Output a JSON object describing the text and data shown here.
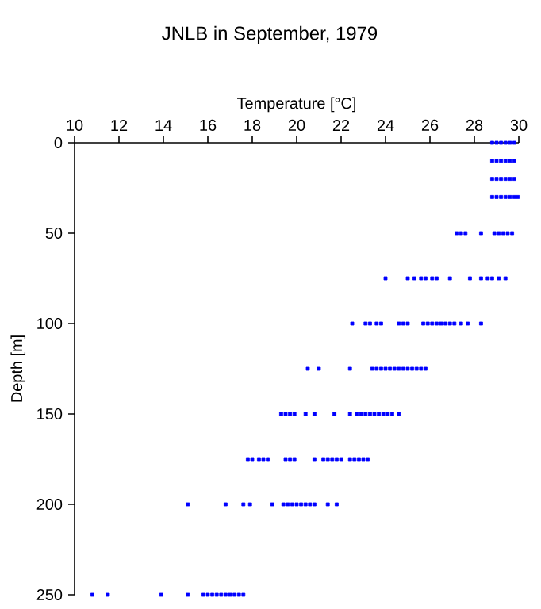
{
  "chart_data": {
    "type": "scatter",
    "title": "JNLB in September, 1979",
    "xlabel": "Temperature [°C]",
    "ylabel": "Depth [m]",
    "xlim": [
      10,
      30
    ],
    "xticks": [
      10,
      12,
      14,
      16,
      18,
      20,
      22,
      24,
      26,
      28,
      30
    ],
    "ylim": [
      250,
      0
    ],
    "yticks": [
      0,
      50,
      100,
      150,
      200,
      250
    ],
    "marker": "square",
    "series": [
      {
        "color": "#0000ff",
        "x": [
          28.8,
          29.0,
          29.2,
          29.4,
          29.6,
          29.8
        ],
        "values": [
          0,
          0,
          0,
          0,
          0,
          0
        ]
      },
      {
        "color": "#0000ff",
        "x": [
          28.8,
          29.0,
          29.2,
          29.4,
          29.6,
          29.8
        ],
        "values": [
          10,
          10,
          10,
          10,
          10,
          10
        ]
      },
      {
        "color": "#0000ff",
        "x": [
          28.8,
          29.0,
          29.2,
          29.4,
          29.6,
          29.8
        ],
        "values": [
          20,
          20,
          20,
          20,
          20,
          20
        ]
      },
      {
        "color": "#0000ff",
        "x": [
          28.8,
          29.0,
          29.2,
          29.4,
          29.6,
          29.8,
          29.95
        ],
        "values": [
          30,
          30,
          30,
          30,
          30,
          30,
          30
        ]
      },
      {
        "color": "#0000ff",
        "x": [
          27.2,
          27.4,
          27.6,
          28.3,
          28.9,
          29.1,
          29.3,
          29.5,
          29.7
        ],
        "values": [
          50,
          50,
          50,
          50,
          50,
          50,
          50,
          50,
          50
        ]
      },
      {
        "color": "#0000ff",
        "x": [
          24.0,
          25.0,
          25.3,
          25.6,
          25.8,
          26.1,
          26.3,
          26.9,
          27.8,
          28.3,
          28.6,
          28.8,
          29.1,
          29.4
        ],
        "values": [
          75,
          75,
          75,
          75,
          75,
          75,
          75,
          75,
          75,
          75,
          75,
          75,
          75,
          75
        ]
      },
      {
        "color": "#0000ff",
        "x": [
          22.5,
          23.1,
          23.3,
          23.6,
          23.8,
          24.6,
          24.8,
          25.0,
          25.7,
          25.9,
          26.1,
          26.3,
          26.5,
          26.7,
          26.9,
          27.1,
          27.4,
          27.7,
          28.3
        ],
        "values": [
          100,
          100,
          100,
          100,
          100,
          100,
          100,
          100,
          100,
          100,
          100,
          100,
          100,
          100,
          100,
          100,
          100,
          100,
          100
        ]
      },
      {
        "color": "#0000ff",
        "x": [
          20.5,
          21.0,
          22.4,
          23.4,
          23.6,
          23.8,
          24.0,
          24.2,
          24.4,
          24.6,
          24.8,
          25.0,
          25.2,
          25.4,
          25.6,
          25.8
        ],
        "values": [
          125,
          125,
          125,
          125,
          125,
          125,
          125,
          125,
          125,
          125,
          125,
          125,
          125,
          125,
          125,
          125
        ]
      },
      {
        "color": "#0000ff",
        "x": [
          19.3,
          19.5,
          19.7,
          19.9,
          20.4,
          20.8,
          21.7,
          22.4,
          22.7,
          22.9,
          23.1,
          23.3,
          23.5,
          23.7,
          23.9,
          24.1,
          24.3,
          24.6
        ],
        "values": [
          150,
          150,
          150,
          150,
          150,
          150,
          150,
          150,
          150,
          150,
          150,
          150,
          150,
          150,
          150,
          150,
          150,
          150
        ]
      },
      {
        "color": "#0000ff",
        "x": [
          17.8,
          18.0,
          18.3,
          18.5,
          18.7,
          19.5,
          19.7,
          19.9,
          20.8,
          21.2,
          21.4,
          21.6,
          21.8,
          22.0,
          22.4,
          22.6,
          22.8,
          23.0,
          23.2
        ],
        "values": [
          175,
          175,
          175,
          175,
          175,
          175,
          175,
          175,
          175,
          175,
          175,
          175,
          175,
          175,
          175,
          175,
          175,
          175,
          175
        ]
      },
      {
        "color": "#0000ff",
        "x": [
          15.1,
          16.8,
          17.6,
          17.9,
          18.9,
          19.4,
          19.6,
          19.8,
          20.0,
          20.2,
          20.4,
          20.6,
          20.8,
          21.4,
          21.8
        ],
        "values": [
          200,
          200,
          200,
          200,
          200,
          200,
          200,
          200,
          200,
          200,
          200,
          200,
          200,
          200,
          200
        ]
      },
      {
        "color": "#0000ff",
        "x": [
          10.8,
          11.5,
          13.9,
          15.1,
          15.8,
          16.0,
          16.2,
          16.4,
          16.6,
          16.8,
          17.0,
          17.2,
          17.4,
          17.6
        ],
        "values": [
          250,
          250,
          250,
          250,
          250,
          250,
          250,
          250,
          250,
          250,
          250,
          250,
          250,
          250
        ]
      }
    ]
  }
}
